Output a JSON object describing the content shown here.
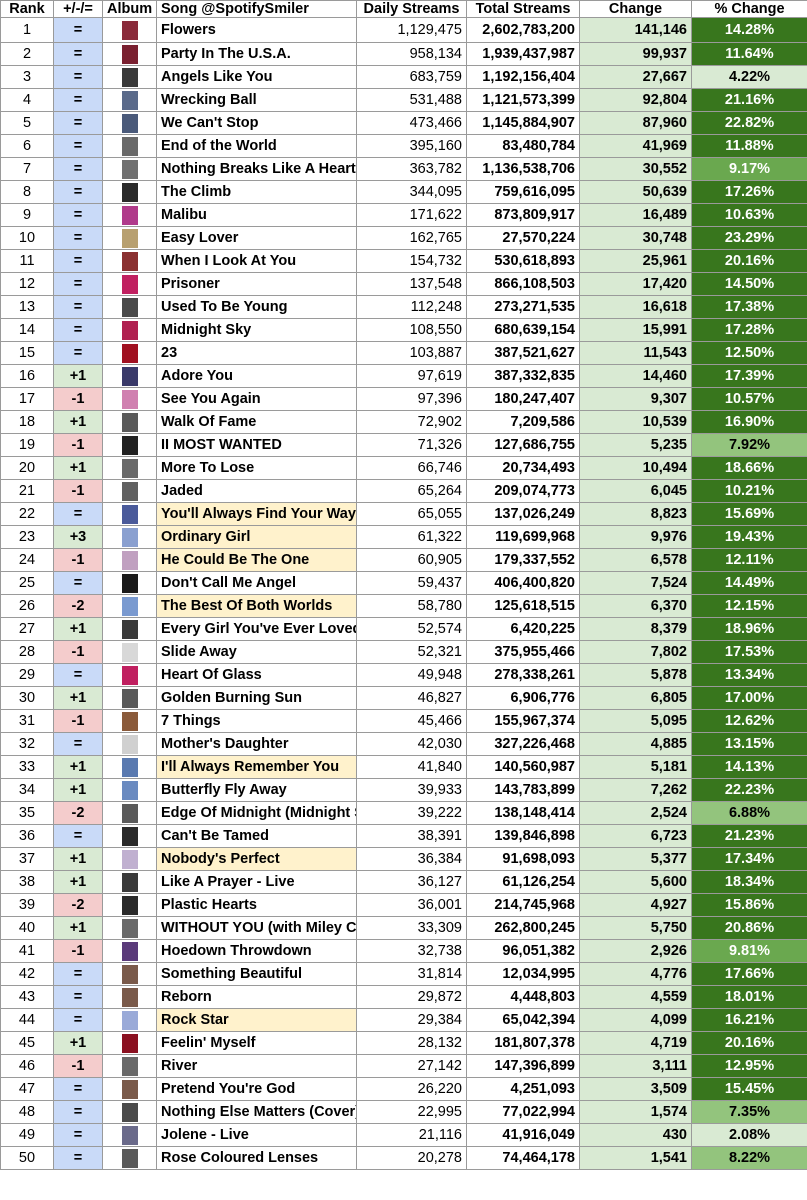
{
  "headers": {
    "rank": "Rank",
    "movement": "+/-/=",
    "album": "Album",
    "song": "Song @SpotifySmiler",
    "daily": "Daily Streams",
    "total": "Total Streams",
    "change": "Change",
    "pct": "% Change"
  },
  "colors": {
    "same": "#c9daf8",
    "up": "#d9ead3",
    "down": "#f4cccc",
    "highlight": "#fff2cc",
    "pct_dark": "#38761d",
    "pct_mid": "#6aa84f",
    "pct_light": "#93c47d",
    "pct_pale": "#d9ead3"
  },
  "rows": [
    {
      "rank": "1",
      "movement": "=",
      "song": "Flowers",
      "daily": "1,129,475",
      "total": "2,602,783,200",
      "change": "141,146",
      "pct": "14.28%",
      "cover": "#8a2a3a"
    },
    {
      "rank": "2",
      "movement": "=",
      "song": "Party In The U.S.A.",
      "daily": "958,134",
      "total": "1,939,437,987",
      "change": "99,937",
      "pct": "11.64%",
      "cover": "#7a2030"
    },
    {
      "rank": "3",
      "movement": "=",
      "song": "Angels Like You",
      "daily": "683,759",
      "total": "1,192,156,404",
      "change": "27,667",
      "pct": "4.22%",
      "cover": "#3a3a3a"
    },
    {
      "rank": "4",
      "movement": "=",
      "song": "Wrecking Ball",
      "daily": "531,488",
      "total": "1,121,573,399",
      "change": "92,804",
      "pct": "21.16%",
      "cover": "#5a6a8a"
    },
    {
      "rank": "5",
      "movement": "=",
      "song": "We Can't Stop",
      "daily": "473,466",
      "total": "1,145,884,907",
      "change": "87,960",
      "pct": "22.82%",
      "cover": "#4a5a7a"
    },
    {
      "rank": "6",
      "movement": "=",
      "song": "End of the World",
      "daily": "395,160",
      "total": "83,480,784",
      "change": "41,969",
      "pct": "11.88%",
      "cover": "#6a6a6a"
    },
    {
      "rank": "7",
      "movement": "=",
      "song": "Nothing Breaks Like A Heart",
      "daily": "363,782",
      "total": "1,136,538,706",
      "change": "30,552",
      "pct": "9.17%",
      "cover": "#707070"
    },
    {
      "rank": "8",
      "movement": "=",
      "song": "The Climb",
      "daily": "344,095",
      "total": "759,616,095",
      "change": "50,639",
      "pct": "17.26%",
      "cover": "#2a2a2a"
    },
    {
      "rank": "9",
      "movement": "=",
      "song": "Malibu",
      "daily": "171,622",
      "total": "873,809,917",
      "change": "16,489",
      "pct": "10.63%",
      "cover": "#b03a8a"
    },
    {
      "rank": "10",
      "movement": "=",
      "song": "Easy Lover",
      "daily": "162,765",
      "total": "27,570,224",
      "change": "30,748",
      "pct": "23.29%",
      "cover": "#b8a070"
    },
    {
      "rank": "11",
      "movement": "=",
      "song": "When I Look At You",
      "daily": "154,732",
      "total": "530,618,893",
      "change": "25,961",
      "pct": "20.16%",
      "cover": "#8a3030"
    },
    {
      "rank": "12",
      "movement": "=",
      "song": "Prisoner",
      "daily": "137,548",
      "total": "866,108,503",
      "change": "17,420",
      "pct": "14.50%",
      "cover": "#c02060"
    },
    {
      "rank": "13",
      "movement": "=",
      "song": "Used To Be Young",
      "daily": "112,248",
      "total": "273,271,535",
      "change": "16,618",
      "pct": "17.38%",
      "cover": "#4a4a4a"
    },
    {
      "rank": "14",
      "movement": "=",
      "song": "Midnight Sky",
      "daily": "108,550",
      "total": "680,639,154",
      "change": "15,991",
      "pct": "17.28%",
      "cover": "#b02050"
    },
    {
      "rank": "15",
      "movement": "=",
      "song": "23",
      "daily": "103,887",
      "total": "387,521,627",
      "change": "11,543",
      "pct": "12.50%",
      "cover": "#a01020"
    },
    {
      "rank": "16",
      "movement": "+1",
      "song": "Adore You",
      "daily": "97,619",
      "total": "387,332,835",
      "change": "14,460",
      "pct": "17.39%",
      "cover": "#3a3a6a"
    },
    {
      "rank": "17",
      "movement": "-1",
      "song": "See You Again",
      "daily": "97,396",
      "total": "180,247,407",
      "change": "9,307",
      "pct": "10.57%",
      "cover": "#d080b0"
    },
    {
      "rank": "18",
      "movement": "+1",
      "song": "Walk Of Fame",
      "daily": "72,902",
      "total": "7,209,586",
      "change": "10,539",
      "pct": "16.90%",
      "cover": "#5a5a5a"
    },
    {
      "rank": "19",
      "movement": "-1",
      "song": "II MOST WANTED",
      "daily": "71,326",
      "total": "127,686,755",
      "change": "5,235",
      "pct": "7.92%",
      "cover": "#222222"
    },
    {
      "rank": "20",
      "movement": "+1",
      "song": "More To Lose",
      "daily": "66,746",
      "total": "20,734,493",
      "change": "10,494",
      "pct": "18.66%",
      "cover": "#6a6a6a"
    },
    {
      "rank": "21",
      "movement": "-1",
      "song": "Jaded",
      "daily": "65,264",
      "total": "209,074,773",
      "change": "6,045",
      "pct": "10.21%",
      "cover": "#606060"
    },
    {
      "rank": "22",
      "movement": "=",
      "song": "You'll Always Find Your Way Back Home",
      "daily": "65,055",
      "total": "137,026,249",
      "change": "8,823",
      "pct": "15.69%",
      "cover": "#4a5a9a",
      "hl": true
    },
    {
      "rank": "23",
      "movement": "+3",
      "song": "Ordinary Girl",
      "daily": "61,322",
      "total": "119,699,968",
      "change": "9,976",
      "pct": "19.43%",
      "cover": "#8aa0d0",
      "hl": true
    },
    {
      "rank": "24",
      "movement": "-1",
      "song": "He Could Be The One",
      "daily": "60,905",
      "total": "179,337,552",
      "change": "6,578",
      "pct": "12.11%",
      "cover": "#c0a0c0",
      "hl": true
    },
    {
      "rank": "25",
      "movement": "=",
      "song": "Don't Call Me Angel",
      "daily": "59,437",
      "total": "406,400,820",
      "change": "7,524",
      "pct": "14.49%",
      "cover": "#1a1a1a"
    },
    {
      "rank": "26",
      "movement": "-2",
      "song": "The Best Of Both Worlds",
      "daily": "58,780",
      "total": "125,618,515",
      "change": "6,370",
      "pct": "12.15%",
      "cover": "#7a9ad0",
      "hl": true
    },
    {
      "rank": "27",
      "movement": "+1",
      "song": "Every Girl You've Ever Loved",
      "daily": "52,574",
      "total": "6,420,225",
      "change": "8,379",
      "pct": "18.96%",
      "cover": "#3a3a3a"
    },
    {
      "rank": "28",
      "movement": "-1",
      "song": "Slide Away",
      "daily": "52,321",
      "total": "375,955,466",
      "change": "7,802",
      "pct": "17.53%",
      "cover": "#d8d8d8"
    },
    {
      "rank": "29",
      "movement": "=",
      "song": "Heart Of Glass",
      "daily": "49,948",
      "total": "278,338,261",
      "change": "5,878",
      "pct": "13.34%",
      "cover": "#c02060"
    },
    {
      "rank": "30",
      "movement": "+1",
      "song": "Golden Burning Sun",
      "daily": "46,827",
      "total": "6,906,776",
      "change": "6,805",
      "pct": "17.00%",
      "cover": "#5a5a5a"
    },
    {
      "rank": "31",
      "movement": "-1",
      "song": "7 Things",
      "daily": "45,466",
      "total": "155,967,374",
      "change": "5,095",
      "pct": "12.62%",
      "cover": "#8a5a3a"
    },
    {
      "rank": "32",
      "movement": "=",
      "song": "Mother's Daughter",
      "daily": "42,030",
      "total": "327,226,468",
      "change": "4,885",
      "pct": "13.15%",
      "cover": "#d0d0d0"
    },
    {
      "rank": "33",
      "movement": "+1",
      "song": "I'll Always Remember You",
      "daily": "41,840",
      "total": "140,560,987",
      "change": "5,181",
      "pct": "14.13%",
      "cover": "#5a7ab0",
      "hl": true
    },
    {
      "rank": "34",
      "movement": "+1",
      "song": "Butterfly Fly Away",
      "daily": "39,933",
      "total": "143,783,899",
      "change": "7,262",
      "pct": "22.23%",
      "cover": "#6a8ac0"
    },
    {
      "rank": "35",
      "movement": "-2",
      "song": "Edge Of Midnight (Midnight Sky Remix)",
      "daily": "39,222",
      "total": "138,148,414",
      "change": "2,524",
      "pct": "6.88%",
      "cover": "#5a5a5a"
    },
    {
      "rank": "36",
      "movement": "=",
      "song": "Can't Be Tamed",
      "daily": "38,391",
      "total": "139,846,898",
      "change": "6,723",
      "pct": "21.23%",
      "cover": "#2a2a2a"
    },
    {
      "rank": "37",
      "movement": "+1",
      "song": "Nobody's Perfect",
      "daily": "36,384",
      "total": "91,698,093",
      "change": "5,377",
      "pct": "17.34%",
      "cover": "#c0b0d0",
      "hl": true
    },
    {
      "rank": "38",
      "movement": "+1",
      "song": "Like A Prayer - Live",
      "daily": "36,127",
      "total": "61,126,254",
      "change": "5,600",
      "pct": "18.34%",
      "cover": "#3a3a3a"
    },
    {
      "rank": "39",
      "movement": "-2",
      "song": "Plastic Hearts",
      "daily": "36,001",
      "total": "214,745,968",
      "change": "4,927",
      "pct": "15.86%",
      "cover": "#2a2a2a"
    },
    {
      "rank": "40",
      "movement": "+1",
      "song": "WITHOUT YOU (with Miley Cyrus)",
      "daily": "33,309",
      "total": "262,800,245",
      "change": "5,750",
      "pct": "20.86%",
      "cover": "#6a6a6a"
    },
    {
      "rank": "41",
      "movement": "-1",
      "song": "Hoedown Throwdown",
      "daily": "32,738",
      "total": "96,051,382",
      "change": "2,926",
      "pct": "9.81%",
      "cover": "#5a3a7a"
    },
    {
      "rank": "42",
      "movement": "=",
      "song": "Something Beautiful",
      "daily": "31,814",
      "total": "12,034,995",
      "change": "4,776",
      "pct": "17.66%",
      "cover": "#7a5a4a"
    },
    {
      "rank": "43",
      "movement": "=",
      "song": "Reborn",
      "daily": "29,872",
      "total": "4,448,803",
      "change": "4,559",
      "pct": "18.01%",
      "cover": "#7a5a4a"
    },
    {
      "rank": "44",
      "movement": "=",
      "song": "Rock Star",
      "daily": "29,384",
      "total": "65,042,394",
      "change": "4,099",
      "pct": "16.21%",
      "cover": "#9aaad8",
      "hl": true
    },
    {
      "rank": "45",
      "movement": "+1",
      "song": "Feelin' Myself",
      "daily": "28,132",
      "total": "181,807,378",
      "change": "4,719",
      "pct": "20.16%",
      "cover": "#8a1020"
    },
    {
      "rank": "46",
      "movement": "-1",
      "song": "River",
      "daily": "27,142",
      "total": "147,396,899",
      "change": "3,111",
      "pct": "12.95%",
      "cover": "#6a6a6a"
    },
    {
      "rank": "47",
      "movement": "=",
      "song": "Pretend You're God",
      "daily": "26,220",
      "total": "4,251,093",
      "change": "3,509",
      "pct": "15.45%",
      "cover": "#7a5a4a"
    },
    {
      "rank": "48",
      "movement": "=",
      "song": "Nothing Else Matters (Cover)",
      "daily": "22,995",
      "total": "77,022,994",
      "change": "1,574",
      "pct": "7.35%",
      "cover": "#4a4a4a"
    },
    {
      "rank": "49",
      "movement": "=",
      "song": "Jolene - Live",
      "daily": "21,116",
      "total": "41,916,049",
      "change": "430",
      "pct": "2.08%",
      "cover": "#6a6a8a"
    },
    {
      "rank": "50",
      "movement": "=",
      "song": "Rose Coloured Lenses",
      "daily": "20,278",
      "total": "74,464,178",
      "change": "1,541",
      "pct": "8.22%",
      "cover": "#5a5a5a"
    }
  ]
}
